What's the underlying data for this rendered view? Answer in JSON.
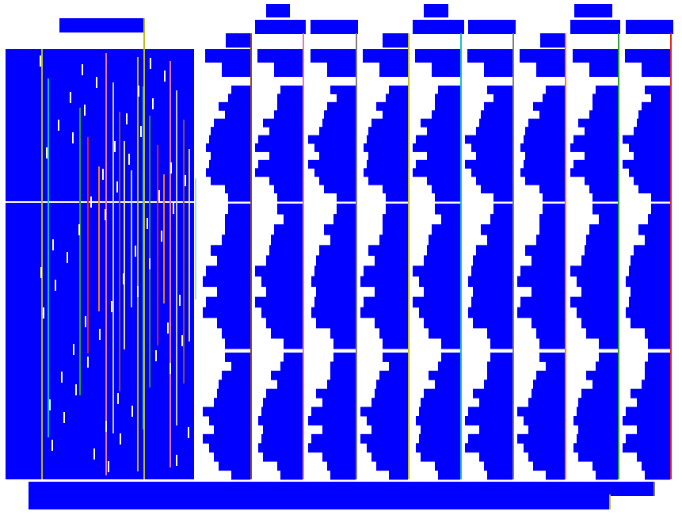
{
  "colors": {
    "bar": "#0000ff",
    "background": "#ffffff",
    "column_lines": [
      "#8b4a3a",
      "#e377c2",
      "#7f7f7f",
      "#bcbd22",
      "#17becf",
      "#7f7f7f",
      "#ff7f0e",
      "#2ca02c",
      "#d62728"
    ],
    "left_lines": [
      "#bcbd22",
      "#17becf",
      "#2ca02c",
      "#d62728",
      "#ff7f0e",
      "#e377c2",
      "#c7c7c7",
      "#8c564b",
      "#dbdb8d",
      "#9edae5"
    ]
  },
  "column_profile": [
    28,
    28,
    36,
    36,
    46,
    46,
    56,
    56,
    46,
    56,
    56,
    46,
    36,
    28
  ]
}
